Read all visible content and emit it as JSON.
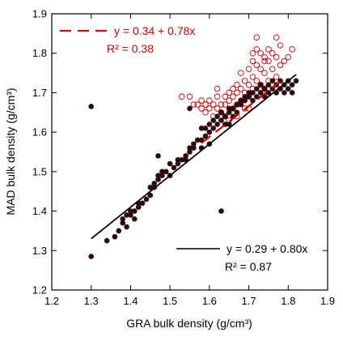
{
  "chart_data": {
    "type": "scatter",
    "title": "",
    "xlabel": "GRA bulk density (g/cm³)",
    "ylabel": "MAD bulk density (g/cm³)",
    "xlim": [
      1.2,
      1.9
    ],
    "ylim": [
      1.2,
      1.9
    ],
    "xticks": [
      "1.2",
      "1.3",
      "1.4",
      "1.5",
      "1.6",
      "1.7",
      "1.8",
      "1.9"
    ],
    "yticks": [
      "1.2",
      "1.3",
      "1.4",
      "1.5",
      "1.6",
      "1.7",
      "1.8",
      "1.9"
    ],
    "grid": false,
    "colors": {
      "filled": "#2a0a0a",
      "open": "#cc0000",
      "black_fit": "#000000",
      "red_fit": "#cc0000"
    },
    "series": [
      {
        "marker": "open-circle",
        "color": "#cc0000",
        "fit": {
          "equation": "y = 0.34 + 0.78x",
          "r2": "R² = 0.38",
          "intercept": 0.34,
          "slope": 0.78,
          "x_range": [
            1.58,
            1.78
          ],
          "dash": true
        },
        "points": [
          [
            1.53,
            1.69
          ],
          [
            1.55,
            1.69
          ],
          [
            1.56,
            1.67
          ],
          [
            1.57,
            1.67
          ],
          [
            1.58,
            1.66
          ],
          [
            1.58,
            1.68
          ],
          [
            1.59,
            1.67
          ],
          [
            1.59,
            1.65
          ],
          [
            1.6,
            1.68
          ],
          [
            1.6,
            1.66
          ],
          [
            1.61,
            1.67
          ],
          [
            1.61,
            1.64
          ],
          [
            1.62,
            1.69
          ],
          [
            1.62,
            1.66
          ],
          [
            1.63,
            1.67
          ],
          [
            1.63,
            1.65
          ],
          [
            1.64,
            1.69
          ],
          [
            1.64,
            1.67
          ],
          [
            1.64,
            1.64
          ],
          [
            1.65,
            1.7
          ],
          [
            1.65,
            1.68
          ],
          [
            1.65,
            1.63
          ],
          [
            1.66,
            1.71
          ],
          [
            1.66,
            1.69
          ],
          [
            1.66,
            1.66
          ],
          [
            1.67,
            1.72
          ],
          [
            1.67,
            1.7
          ],
          [
            1.67,
            1.67
          ],
          [
            1.67,
            1.64
          ],
          [
            1.68,
            1.75
          ],
          [
            1.68,
            1.71
          ],
          [
            1.68,
            1.68
          ],
          [
            1.69,
            1.73
          ],
          [
            1.69,
            1.7
          ],
          [
            1.69,
            1.66
          ],
          [
            1.7,
            1.76
          ],
          [
            1.7,
            1.72
          ],
          [
            1.7,
            1.69
          ],
          [
            1.7,
            1.66
          ],
          [
            1.71,
            1.78
          ],
          [
            1.71,
            1.74
          ],
          [
            1.71,
            1.71
          ],
          [
            1.72,
            1.81
          ],
          [
            1.72,
            1.77
          ],
          [
            1.72,
            1.73
          ],
          [
            1.73,
            1.8
          ],
          [
            1.73,
            1.76
          ],
          [
            1.73,
            1.72
          ],
          [
            1.74,
            1.79
          ],
          [
            1.74,
            1.75
          ],
          [
            1.74,
            1.71
          ],
          [
            1.75,
            1.81
          ],
          [
            1.75,
            1.78
          ],
          [
            1.75,
            1.73
          ],
          [
            1.76,
            1.8
          ],
          [
            1.76,
            1.76
          ],
          [
            1.76,
            1.72
          ],
          [
            1.77,
            1.79
          ],
          [
            1.77,
            1.74
          ],
          [
            1.78,
            1.82
          ],
          [
            1.78,
            1.77
          ],
          [
            1.79,
            1.78
          ],
          [
            1.8,
            1.79
          ],
          [
            1.81,
            1.81
          ],
          [
            1.71,
            1.8
          ],
          [
            1.74,
            1.78
          ],
          [
            1.72,
            1.84
          ],
          [
            1.77,
            1.84
          ],
          [
            1.62,
            1.71
          ]
        ]
      },
      {
        "marker": "filled-circle",
        "color": "#2a0a0a",
        "fit": {
          "equation": "y = 0.29 + 0.80x",
          "r2": "R² = 0.87",
          "intercept": 0.29,
          "slope": 0.8,
          "x_range": [
            1.3,
            1.82
          ],
          "dash": false
        },
        "points": [
          [
            1.3,
            1.285
          ],
          [
            1.3,
            1.665
          ],
          [
            1.34,
            1.325
          ],
          [
            1.36,
            1.335
          ],
          [
            1.37,
            1.35
          ],
          [
            1.38,
            1.37
          ],
          [
            1.38,
            1.38
          ],
          [
            1.39,
            1.39
          ],
          [
            1.39,
            1.36
          ],
          [
            1.4,
            1.39
          ],
          [
            1.4,
            1.4
          ],
          [
            1.41,
            1.38
          ],
          [
            1.41,
            1.4
          ],
          [
            1.42,
            1.41
          ],
          [
            1.42,
            1.42
          ],
          [
            1.43,
            1.42
          ],
          [
            1.44,
            1.43
          ],
          [
            1.45,
            1.44
          ],
          [
            1.45,
            1.46
          ],
          [
            1.46,
            1.46
          ],
          [
            1.46,
            1.47
          ],
          [
            1.47,
            1.48
          ],
          [
            1.47,
            1.49
          ],
          [
            1.48,
            1.49
          ],
          [
            1.48,
            1.5
          ],
          [
            1.49,
            1.5
          ],
          [
            1.5,
            1.52
          ],
          [
            1.5,
            1.49
          ],
          [
            1.51,
            1.51
          ],
          [
            1.52,
            1.52
          ],
          [
            1.52,
            1.53
          ],
          [
            1.53,
            1.53
          ],
          [
            1.54,
            1.53
          ],
          [
            1.54,
            1.54
          ],
          [
            1.55,
            1.55
          ],
          [
            1.55,
            1.56
          ],
          [
            1.56,
            1.56
          ],
          [
            1.56,
            1.57
          ],
          [
            1.57,
            1.58
          ],
          [
            1.58,
            1.58
          ],
          [
            1.58,
            1.56
          ],
          [
            1.59,
            1.59
          ],
          [
            1.59,
            1.61
          ],
          [
            1.6,
            1.6
          ],
          [
            1.6,
            1.62
          ],
          [
            1.61,
            1.61
          ],
          [
            1.61,
            1.63
          ],
          [
            1.62,
            1.62
          ],
          [
            1.62,
            1.64
          ],
          [
            1.63,
            1.63
          ],
          [
            1.63,
            1.65
          ],
          [
            1.64,
            1.64
          ],
          [
            1.64,
            1.62
          ],
          [
            1.65,
            1.65
          ],
          [
            1.65,
            1.66
          ],
          [
            1.66,
            1.66
          ],
          [
            1.66,
            1.64
          ],
          [
            1.67,
            1.67
          ],
          [
            1.67,
            1.65
          ],
          [
            1.68,
            1.67
          ],
          [
            1.68,
            1.68
          ],
          [
            1.69,
            1.68
          ],
          [
            1.69,
            1.69
          ],
          [
            1.7,
            1.69
          ],
          [
            1.7,
            1.7
          ],
          [
            1.71,
            1.7
          ],
          [
            1.71,
            1.68
          ],
          [
            1.72,
            1.71
          ],
          [
            1.72,
            1.69
          ],
          [
            1.73,
            1.7
          ],
          [
            1.73,
            1.72
          ],
          [
            1.74,
            1.71
          ],
          [
            1.74,
            1.69
          ],
          [
            1.75,
            1.72
          ],
          [
            1.75,
            1.7
          ],
          [
            1.76,
            1.71
          ],
          [
            1.76,
            1.73
          ],
          [
            1.77,
            1.72
          ],
          [
            1.77,
            1.7
          ],
          [
            1.78,
            1.73
          ],
          [
            1.78,
            1.71
          ],
          [
            1.79,
            1.72
          ],
          [
            1.79,
            1.7
          ],
          [
            1.8,
            1.73
          ],
          [
            1.8,
            1.71
          ],
          [
            1.81,
            1.72
          ],
          [
            1.81,
            1.7
          ],
          [
            1.82,
            1.73
          ],
          [
            1.47,
            1.54
          ],
          [
            1.58,
            1.61
          ],
          [
            1.63,
            1.4
          ],
          [
            1.55,
            1.66
          ],
          [
            1.6,
            1.57
          ],
          [
            1.65,
            1.62
          ]
        ]
      }
    ]
  }
}
